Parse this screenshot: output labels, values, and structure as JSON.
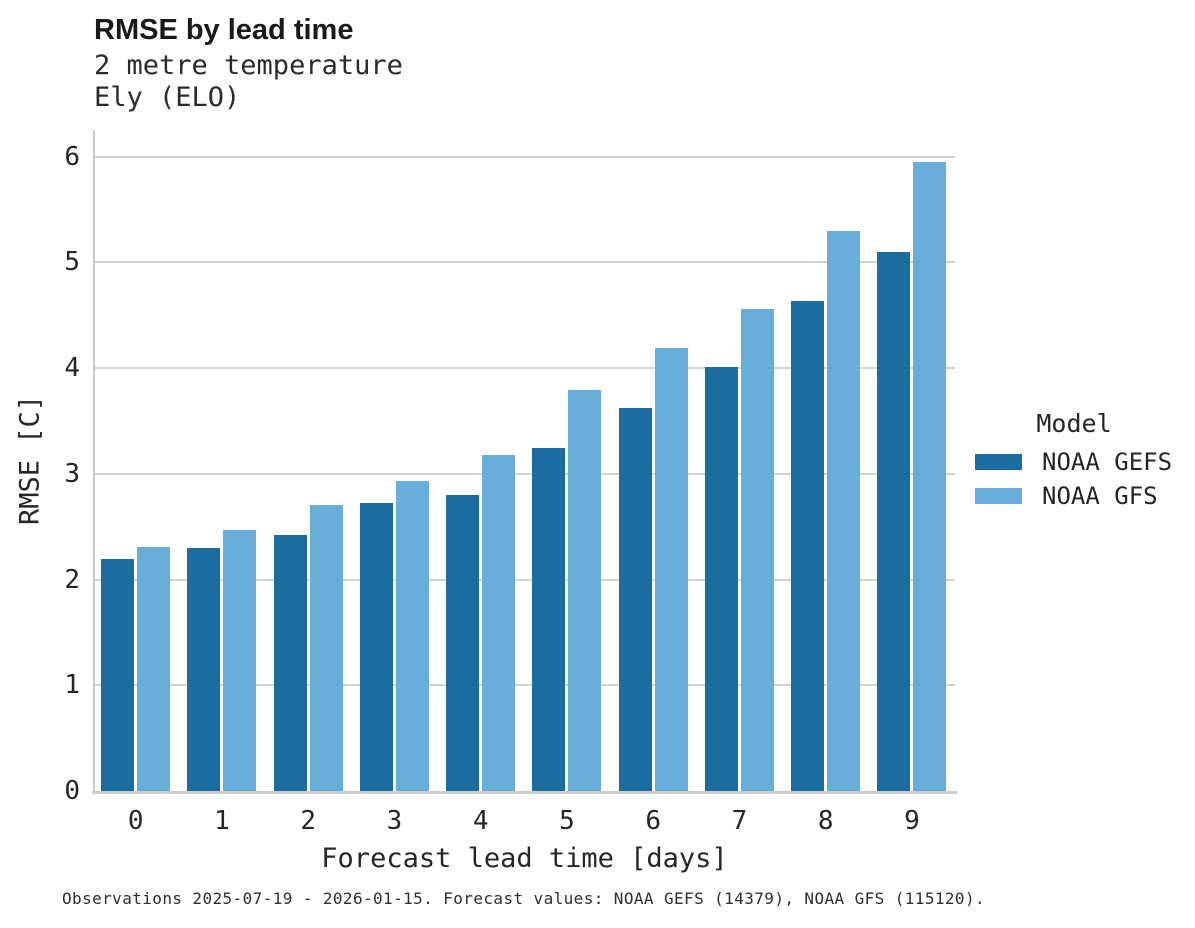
{
  "header": {
    "title": "RMSE by lead time",
    "subtitle_line1": "2 metre temperature",
    "subtitle_line2": "Ely (ELO)"
  },
  "chart_data": {
    "type": "bar",
    "title": "RMSE by lead time",
    "subtitle": "2 metre temperature — Ely (ELO)",
    "categories": [
      "0",
      "1",
      "2",
      "3",
      "4",
      "5",
      "6",
      "7",
      "8",
      "9"
    ],
    "series": [
      {
        "name": "NOAA GEFS",
        "color": "#1b6ca0",
        "values": [
          2.19,
          2.3,
          2.42,
          2.72,
          2.8,
          3.24,
          3.62,
          4.01,
          4.63,
          5.1
        ]
      },
      {
        "name": "NOAA GFS",
        "color": "#69aed9",
        "values": [
          2.31,
          2.47,
          2.7,
          2.93,
          3.18,
          3.79,
          4.19,
          4.56,
          5.3,
          5.95
        ]
      }
    ],
    "xlabel": "Forecast lead time [days]",
    "ylabel": "RMSE [C]",
    "ylim": [
      0,
      6
    ],
    "yticks": [
      0,
      1,
      2,
      3,
      4,
      5,
      6
    ],
    "grid": "horizontal",
    "legend_position": "right-center"
  },
  "legend": {
    "title": "Model",
    "items": [
      {
        "label": "NOAA GEFS",
        "color": "#1b6ca0"
      },
      {
        "label": "NOAA GFS",
        "color": "#69aed9"
      }
    ]
  },
  "footer": {
    "caption": "Observations 2025-07-19 - 2026-01-15. Forecast values: NOAA GEFS (14379), NOAA GFS (115120)."
  }
}
